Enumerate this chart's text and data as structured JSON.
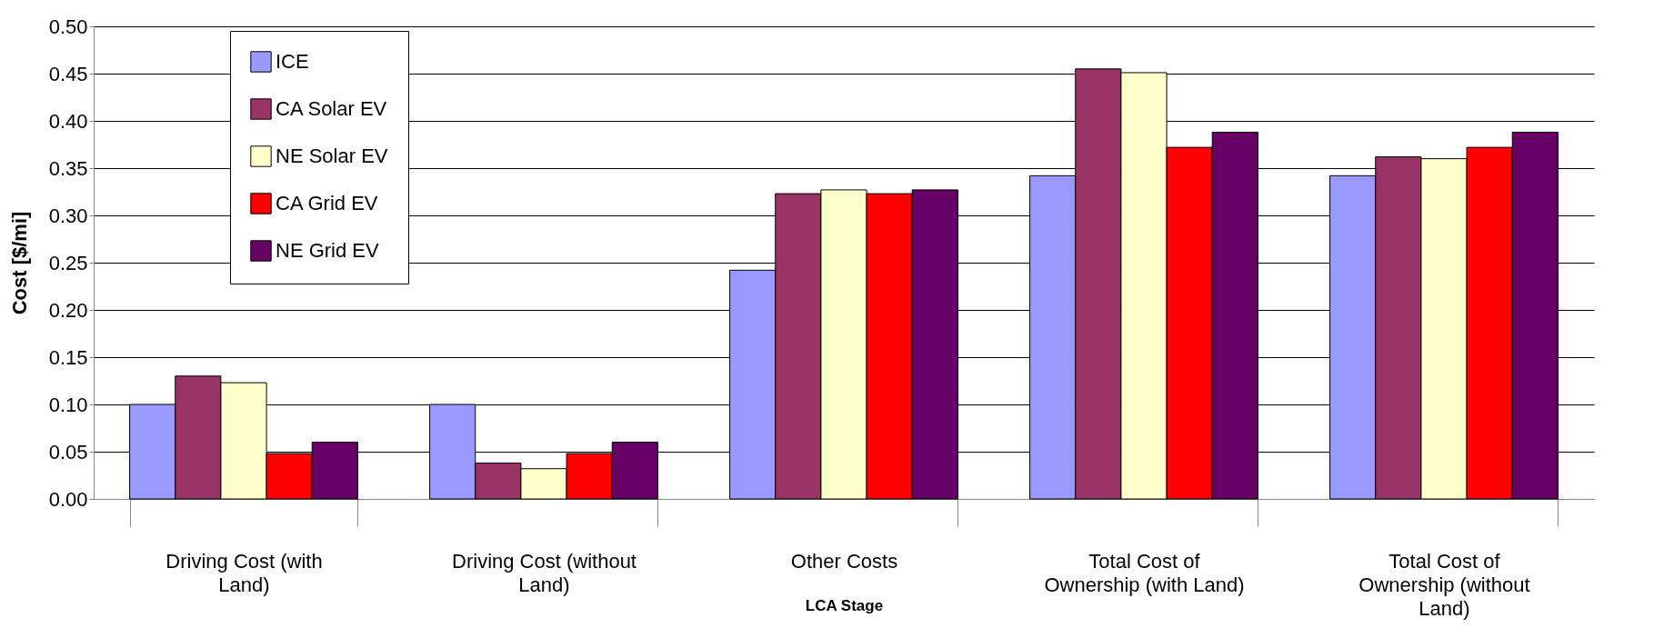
{
  "chart_data": {
    "type": "bar",
    "xlabel": "LCA Stage",
    "ylabel": "Cost [$/mi]",
    "categories": [
      "Driving Cost (with Land)",
      "Driving Cost (without Land)",
      "Other Costs",
      "Total Cost of Ownership (with Land)",
      "Total Cost of Ownership (without Land)"
    ],
    "series": [
      {
        "name": "ICE",
        "color": "#9999ff",
        "values": [
          0.1,
          0.1,
          0.242,
          0.342,
          0.342
        ]
      },
      {
        "name": "CA Solar EV",
        "color": "#993366",
        "values": [
          0.13,
          0.038,
          0.323,
          0.455,
          0.362
        ]
      },
      {
        "name": "NE Solar EV",
        "color": "#ffffcc",
        "values": [
          0.123,
          0.032,
          0.327,
          0.451,
          0.36
        ]
      },
      {
        "name": "CA Grid EV",
        "color": "#ff0000",
        "values": [
          0.048,
          0.048,
          0.323,
          0.372,
          0.372
        ]
      },
      {
        "name": "NE Grid EV",
        "color": "#660066",
        "values": [
          0.06,
          0.06,
          0.327,
          0.388,
          0.388
        ]
      }
    ],
    "ylim": [
      0,
      0.5
    ],
    "yticks": [
      {
        "value": 0,
        "label": "0.00"
      },
      {
        "value": 0.05,
        "label": "0.05"
      },
      {
        "value": 0.1,
        "label": "0.10"
      },
      {
        "value": 0.15,
        "label": "0.15"
      },
      {
        "value": 0.2,
        "label": "0.20"
      },
      {
        "value": 0.25,
        "label": "0.25"
      },
      {
        "value": 0.3,
        "label": "0.30"
      },
      {
        "value": 0.35,
        "label": "0.35"
      },
      {
        "value": 0.4,
        "label": "0.40"
      },
      {
        "value": 0.45,
        "label": "0.45"
      },
      {
        "value": 0.5,
        "label": "0.50"
      }
    ],
    "grid": "y",
    "legend": "top left"
  }
}
